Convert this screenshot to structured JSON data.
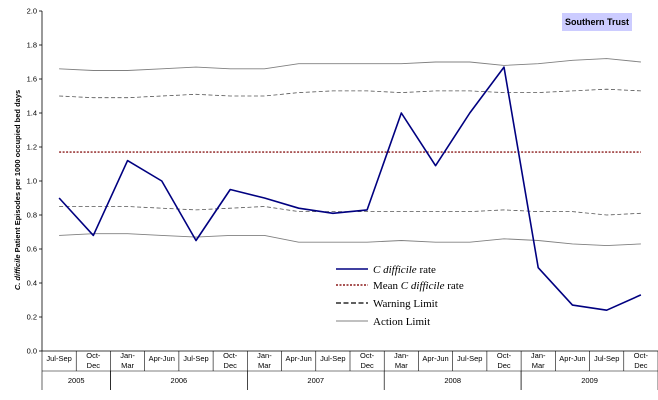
{
  "chart_data": {
    "type": "line",
    "badge": "Southern Trust",
    "ylabel_italic": "C. difficile",
    "ylabel_rest": " Patient Episodes per 1000 occupied bed days",
    "ylim": [
      0,
      2.0
    ],
    "yticks": [
      "0.0",
      "0.2",
      "0.4",
      "0.6",
      "0.8",
      "1.0",
      "1.2",
      "1.4",
      "1.6",
      "1.8",
      "2.0"
    ],
    "categories": [
      [
        "Jul-Sep"
      ],
      [
        "Oct-",
        "Dec"
      ],
      [
        "Jan-",
        "Mar"
      ],
      [
        "Apr-Jun"
      ],
      [
        "Jul-Sep"
      ],
      [
        "Oct-",
        "Dec"
      ],
      [
        "Jan-",
        "Mar"
      ],
      [
        "Apr-Jun"
      ],
      [
        "Jul-Sep"
      ],
      [
        "Oct-",
        "Dec"
      ],
      [
        "Jan-",
        "Mar"
      ],
      [
        "Apr-Jun"
      ],
      [
        "Jul-Sep"
      ],
      [
        "Oct-",
        "Dec"
      ],
      [
        "Jan-",
        "Mar"
      ],
      [
        "Apr-Jun"
      ],
      [
        "Jul-Sep"
      ],
      [
        "Oct-",
        "Dec"
      ]
    ],
    "years": [
      {
        "label": "2005",
        "start": 0,
        "count": 2
      },
      {
        "label": "2006",
        "start": 2,
        "count": 4
      },
      {
        "label": "2007",
        "start": 6,
        "count": 4
      },
      {
        "label": "2008",
        "start": 10,
        "count": 4
      },
      {
        "label": "2009",
        "start": 14,
        "count": 4
      }
    ],
    "series": [
      {
        "name": "rate",
        "values": [
          0.9,
          0.68,
          1.12,
          1.0,
          0.65,
          0.95,
          0.9,
          0.84,
          0.81,
          0.83,
          1.4,
          1.09,
          1.4,
          1.67,
          0.49,
          0.27,
          0.24,
          0.33
        ]
      },
      {
        "name": "mean",
        "values": [
          1.17,
          1.17,
          1.17,
          1.17,
          1.17,
          1.17,
          1.17,
          1.17,
          1.17,
          1.17,
          1.17,
          1.17,
          1.17,
          1.17,
          1.17,
          1.17,
          1.17,
          1.17
        ]
      },
      {
        "name": "warn_upper",
        "values": [
          1.5,
          1.49,
          1.49,
          1.5,
          1.51,
          1.5,
          1.5,
          1.52,
          1.53,
          1.53,
          1.52,
          1.53,
          1.53,
          1.52,
          1.52,
          1.53,
          1.54,
          1.53
        ]
      },
      {
        "name": "warn_lower",
        "values": [
          0.85,
          0.85,
          0.85,
          0.84,
          0.83,
          0.84,
          0.85,
          0.82,
          0.82,
          0.82,
          0.82,
          0.82,
          0.82,
          0.83,
          0.82,
          0.82,
          0.8,
          0.81
        ]
      },
      {
        "name": "action_upper",
        "values": [
          1.66,
          1.65,
          1.65,
          1.66,
          1.67,
          1.66,
          1.66,
          1.69,
          1.69,
          1.69,
          1.69,
          1.7,
          1.7,
          1.68,
          1.69,
          1.71,
          1.72,
          1.7
        ]
      },
      {
        "name": "action_lower",
        "values": [
          0.68,
          0.69,
          0.69,
          0.68,
          0.67,
          0.68,
          0.68,
          0.64,
          0.64,
          0.64,
          0.65,
          0.64,
          0.64,
          0.66,
          0.65,
          0.63,
          0.62,
          0.63
        ]
      }
    ],
    "legend": [
      {
        "italic": "C difficile",
        "rest": " rate",
        "style": "rate"
      },
      {
        "italic": "",
        "rest_pre": "Mean ",
        "italic2": "C difficile",
        "rest": " rate",
        "style": "mean"
      },
      {
        "italic": "",
        "rest": "Warning Limit",
        "style": "warn"
      },
      {
        "italic": "",
        "rest": "Action Limit",
        "style": "action"
      }
    ],
    "legend_labels": [
      "C difficile rate",
      "Mean C difficile rate",
      "Warning Limit",
      "Action Limit"
    ],
    "colors": {
      "rate": "#000080",
      "mean": "#8B1A1A",
      "warn": "#000000",
      "action": "#808080",
      "badge_bg": "#CCCCFF"
    }
  }
}
